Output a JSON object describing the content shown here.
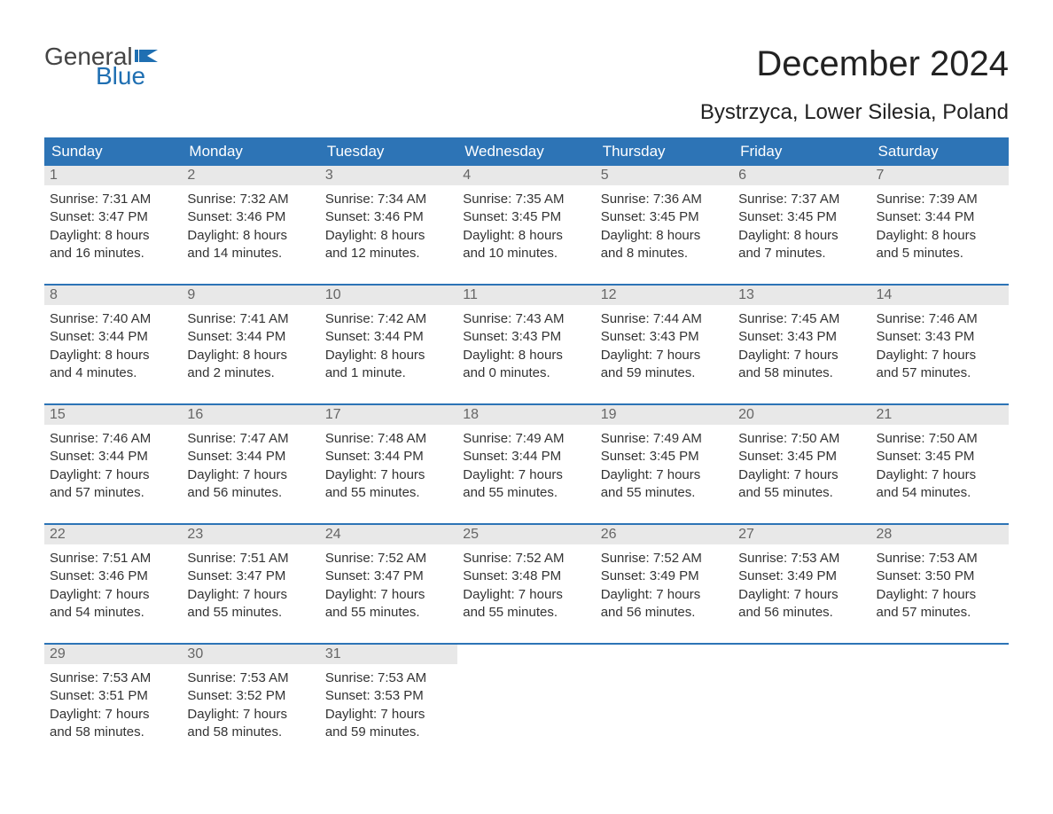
{
  "brand": {
    "text_general": "General",
    "text_blue": "Blue"
  },
  "title": "December 2024",
  "location": "Bystrzyca, Lower Silesia, Poland",
  "colors": {
    "header_bg": "#2d74b6",
    "header_text": "#ffffff",
    "daynum_bg": "#e8e8e8",
    "daynum_text": "#666666",
    "body_text": "#333333",
    "week_border": "#2d74b6",
    "brand_gray": "#444444",
    "brand_blue": "#1f6fb2",
    "background": "#ffffff"
  },
  "typography": {
    "title_fontsize": 40,
    "location_fontsize": 24,
    "weekday_fontsize": 17,
    "daynum_fontsize": 16,
    "body_fontsize": 15
  },
  "weekdays": [
    "Sunday",
    "Monday",
    "Tuesday",
    "Wednesday",
    "Thursday",
    "Friday",
    "Saturday"
  ],
  "weeks": [
    [
      {
        "n": "1",
        "sunrise": "Sunrise: 7:31 AM",
        "sunset": "Sunset: 3:47 PM",
        "d1": "Daylight: 8 hours",
        "d2": "and 16 minutes."
      },
      {
        "n": "2",
        "sunrise": "Sunrise: 7:32 AM",
        "sunset": "Sunset: 3:46 PM",
        "d1": "Daylight: 8 hours",
        "d2": "and 14 minutes."
      },
      {
        "n": "3",
        "sunrise": "Sunrise: 7:34 AM",
        "sunset": "Sunset: 3:46 PM",
        "d1": "Daylight: 8 hours",
        "d2": "and 12 minutes."
      },
      {
        "n": "4",
        "sunrise": "Sunrise: 7:35 AM",
        "sunset": "Sunset: 3:45 PM",
        "d1": "Daylight: 8 hours",
        "d2": "and 10 minutes."
      },
      {
        "n": "5",
        "sunrise": "Sunrise: 7:36 AM",
        "sunset": "Sunset: 3:45 PM",
        "d1": "Daylight: 8 hours",
        "d2": "and 8 minutes."
      },
      {
        "n": "6",
        "sunrise": "Sunrise: 7:37 AM",
        "sunset": "Sunset: 3:45 PM",
        "d1": "Daylight: 8 hours",
        "d2": "and 7 minutes."
      },
      {
        "n": "7",
        "sunrise": "Sunrise: 7:39 AM",
        "sunset": "Sunset: 3:44 PM",
        "d1": "Daylight: 8 hours",
        "d2": "and 5 minutes."
      }
    ],
    [
      {
        "n": "8",
        "sunrise": "Sunrise: 7:40 AM",
        "sunset": "Sunset: 3:44 PM",
        "d1": "Daylight: 8 hours",
        "d2": "and 4 minutes."
      },
      {
        "n": "9",
        "sunrise": "Sunrise: 7:41 AM",
        "sunset": "Sunset: 3:44 PM",
        "d1": "Daylight: 8 hours",
        "d2": "and 2 minutes."
      },
      {
        "n": "10",
        "sunrise": "Sunrise: 7:42 AM",
        "sunset": "Sunset: 3:44 PM",
        "d1": "Daylight: 8 hours",
        "d2": "and 1 minute."
      },
      {
        "n": "11",
        "sunrise": "Sunrise: 7:43 AM",
        "sunset": "Sunset: 3:43 PM",
        "d1": "Daylight: 8 hours",
        "d2": "and 0 minutes."
      },
      {
        "n": "12",
        "sunrise": "Sunrise: 7:44 AM",
        "sunset": "Sunset: 3:43 PM",
        "d1": "Daylight: 7 hours",
        "d2": "and 59 minutes."
      },
      {
        "n": "13",
        "sunrise": "Sunrise: 7:45 AM",
        "sunset": "Sunset: 3:43 PM",
        "d1": "Daylight: 7 hours",
        "d2": "and 58 minutes."
      },
      {
        "n": "14",
        "sunrise": "Sunrise: 7:46 AM",
        "sunset": "Sunset: 3:43 PM",
        "d1": "Daylight: 7 hours",
        "d2": "and 57 minutes."
      }
    ],
    [
      {
        "n": "15",
        "sunrise": "Sunrise: 7:46 AM",
        "sunset": "Sunset: 3:44 PM",
        "d1": "Daylight: 7 hours",
        "d2": "and 57 minutes."
      },
      {
        "n": "16",
        "sunrise": "Sunrise: 7:47 AM",
        "sunset": "Sunset: 3:44 PM",
        "d1": "Daylight: 7 hours",
        "d2": "and 56 minutes."
      },
      {
        "n": "17",
        "sunrise": "Sunrise: 7:48 AM",
        "sunset": "Sunset: 3:44 PM",
        "d1": "Daylight: 7 hours",
        "d2": "and 55 minutes."
      },
      {
        "n": "18",
        "sunrise": "Sunrise: 7:49 AM",
        "sunset": "Sunset: 3:44 PM",
        "d1": "Daylight: 7 hours",
        "d2": "and 55 minutes."
      },
      {
        "n": "19",
        "sunrise": "Sunrise: 7:49 AM",
        "sunset": "Sunset: 3:45 PM",
        "d1": "Daylight: 7 hours",
        "d2": "and 55 minutes."
      },
      {
        "n": "20",
        "sunrise": "Sunrise: 7:50 AM",
        "sunset": "Sunset: 3:45 PM",
        "d1": "Daylight: 7 hours",
        "d2": "and 55 minutes."
      },
      {
        "n": "21",
        "sunrise": "Sunrise: 7:50 AM",
        "sunset": "Sunset: 3:45 PM",
        "d1": "Daylight: 7 hours",
        "d2": "and 54 minutes."
      }
    ],
    [
      {
        "n": "22",
        "sunrise": "Sunrise: 7:51 AM",
        "sunset": "Sunset: 3:46 PM",
        "d1": "Daylight: 7 hours",
        "d2": "and 54 minutes."
      },
      {
        "n": "23",
        "sunrise": "Sunrise: 7:51 AM",
        "sunset": "Sunset: 3:47 PM",
        "d1": "Daylight: 7 hours",
        "d2": "and 55 minutes."
      },
      {
        "n": "24",
        "sunrise": "Sunrise: 7:52 AM",
        "sunset": "Sunset: 3:47 PM",
        "d1": "Daylight: 7 hours",
        "d2": "and 55 minutes."
      },
      {
        "n": "25",
        "sunrise": "Sunrise: 7:52 AM",
        "sunset": "Sunset: 3:48 PM",
        "d1": "Daylight: 7 hours",
        "d2": "and 55 minutes."
      },
      {
        "n": "26",
        "sunrise": "Sunrise: 7:52 AM",
        "sunset": "Sunset: 3:49 PM",
        "d1": "Daylight: 7 hours",
        "d2": "and 56 minutes."
      },
      {
        "n": "27",
        "sunrise": "Sunrise: 7:53 AM",
        "sunset": "Sunset: 3:49 PM",
        "d1": "Daylight: 7 hours",
        "d2": "and 56 minutes."
      },
      {
        "n": "28",
        "sunrise": "Sunrise: 7:53 AM",
        "sunset": "Sunset: 3:50 PM",
        "d1": "Daylight: 7 hours",
        "d2": "and 57 minutes."
      }
    ],
    [
      {
        "n": "29",
        "sunrise": "Sunrise: 7:53 AM",
        "sunset": "Sunset: 3:51 PM",
        "d1": "Daylight: 7 hours",
        "d2": "and 58 minutes."
      },
      {
        "n": "30",
        "sunrise": "Sunrise: 7:53 AM",
        "sunset": "Sunset: 3:52 PM",
        "d1": "Daylight: 7 hours",
        "d2": "and 58 minutes."
      },
      {
        "n": "31",
        "sunrise": "Sunrise: 7:53 AM",
        "sunset": "Sunset: 3:53 PM",
        "d1": "Daylight: 7 hours",
        "d2": "and 59 minutes."
      },
      {
        "n": "",
        "sunrise": "",
        "sunset": "",
        "d1": "",
        "d2": ""
      },
      {
        "n": "",
        "sunrise": "",
        "sunset": "",
        "d1": "",
        "d2": ""
      },
      {
        "n": "",
        "sunrise": "",
        "sunset": "",
        "d1": "",
        "d2": ""
      },
      {
        "n": "",
        "sunrise": "",
        "sunset": "",
        "d1": "",
        "d2": ""
      }
    ]
  ]
}
